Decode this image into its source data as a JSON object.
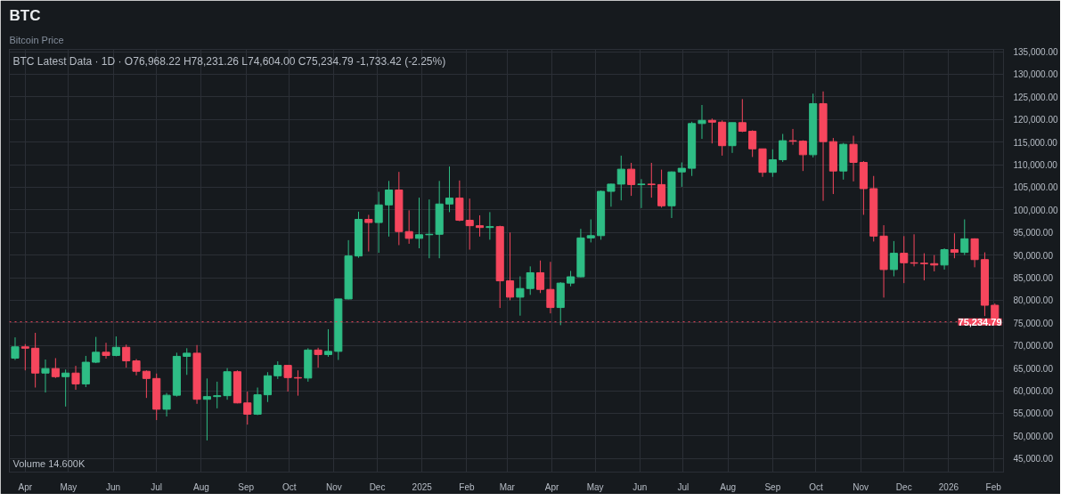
{
  "chart_data": {
    "type": "candlestick",
    "title": "BTC",
    "subtitle": "Bitcoin Price",
    "annotations": [
      "BTC Latest Data · 1D · O76,968.22 H78,231.26 L74,604.00 C75,234.79 -1,733.42 (-2.25%)",
      "Volume 14.600K"
    ],
    "x": [
      "2024-03-25",
      "2024-04-01",
      "2024-04-08",
      "2024-04-15",
      "2024-04-22",
      "2024-04-29",
      "2024-05-06",
      "2024-05-13",
      "2024-05-20",
      "2024-05-27",
      "2024-06-03",
      "2024-06-10",
      "2024-06-17",
      "2024-06-24",
      "2024-07-01",
      "2024-07-08",
      "2024-07-15",
      "2024-07-22",
      "2024-07-29",
      "2024-08-05",
      "2024-08-12",
      "2024-08-19",
      "2024-08-26",
      "2024-09-02",
      "2024-09-09",
      "2024-09-16",
      "2024-09-23",
      "2024-09-30",
      "2024-10-07",
      "2024-10-14",
      "2024-10-21",
      "2024-10-28",
      "2024-11-04",
      "2024-11-11",
      "2024-11-18",
      "2024-11-25",
      "2024-12-02",
      "2024-12-09",
      "2024-12-16",
      "2024-12-23",
      "2024-12-30",
      "2025-01-06",
      "2025-01-13",
      "2025-01-20",
      "2025-01-27",
      "2025-02-03",
      "2025-02-10",
      "2025-02-17",
      "2025-02-24",
      "2025-03-03",
      "2025-03-10",
      "2025-03-17",
      "2025-03-24",
      "2025-03-31",
      "2025-04-07",
      "2025-04-14",
      "2025-04-21",
      "2025-04-28",
      "2025-05-05",
      "2025-05-12",
      "2025-05-19",
      "2025-05-26",
      "2025-06-02",
      "2025-06-09",
      "2025-06-16",
      "2025-06-23",
      "2025-06-30",
      "2025-07-07",
      "2025-07-14",
      "2025-07-21",
      "2025-07-28",
      "2025-08-04",
      "2025-08-11",
      "2025-08-18",
      "2025-08-25",
      "2025-09-01",
      "2025-09-08",
      "2025-09-15",
      "2025-09-22",
      "2025-09-29",
      "2025-10-06",
      "2025-10-13",
      "2025-10-20",
      "2025-10-27",
      "2025-11-03",
      "2025-11-10",
      "2025-11-17",
      "2025-11-24",
      "2025-12-01",
      "2025-12-08",
      "2025-12-15",
      "2025-12-22",
      "2025-12-29",
      "2026-01-05",
      "2026-01-12",
      "2026-01-19",
      "2026-01-26",
      "2026-02-02"
    ],
    "ohlc": [
      [
        67200,
        71800,
        66800,
        69700
      ],
      [
        69700,
        70300,
        64500,
        69400
      ],
      [
        69400,
        72800,
        60700,
        63900
      ],
      [
        63900,
        66900,
        59600,
        64900
      ],
      [
        64900,
        67200,
        62800,
        63100
      ],
      [
        63100,
        64700,
        56500,
        63900
      ],
      [
        63900,
        65500,
        60200,
        61500
      ],
      [
        61500,
        67700,
        60800,
        66300
      ],
      [
        66300,
        71900,
        66100,
        68500
      ],
      [
        68500,
        70600,
        67100,
        67800
      ],
      [
        67800,
        72000,
        67600,
        69600
      ],
      [
        69600,
        70200,
        65100,
        66600
      ],
      [
        66600,
        67000,
        63400,
        64300
      ],
      [
        64300,
        64500,
        58400,
        62700
      ],
      [
        62700,
        63800,
        53500,
        55900
      ],
      [
        55900,
        59500,
        54300,
        59000
      ],
      [
        59000,
        68400,
        58700,
        67600
      ],
      [
        67600,
        69400,
        63500,
        68300
      ],
      [
        68300,
        70100,
        57100,
        58100
      ],
      [
        58100,
        62700,
        49000,
        58700
      ],
      [
        58700,
        62000,
        56100,
        58900
      ],
      [
        58900,
        65000,
        58000,
        64200
      ],
      [
        64200,
        64500,
        57200,
        57300
      ],
      [
        57300,
        59800,
        52500,
        54800
      ],
      [
        54800,
        60700,
        54600,
        59100
      ],
      [
        59100,
        64100,
        57500,
        63300
      ],
      [
        63300,
        66500,
        62600,
        65600
      ],
      [
        65600,
        65600,
        59800,
        62900
      ],
      [
        62900,
        64500,
        58900,
        62800
      ],
      [
        62800,
        69400,
        62000,
        69000
      ],
      [
        69000,
        69500,
        65100,
        68000
      ],
      [
        68000,
        73600,
        67500,
        68700
      ],
      [
        68700,
        80300,
        66800,
        80300
      ],
      [
        80300,
        93300,
        80200,
        89800
      ],
      [
        89800,
        99600,
        89400,
        97900
      ],
      [
        97900,
        98900,
        90800,
        97200
      ],
      [
        97200,
        104000,
        90500,
        101100
      ],
      [
        101100,
        106400,
        94100,
        104400
      ],
      [
        104400,
        108400,
        92200,
        95200
      ],
      [
        95200,
        99900,
        92500,
        93700
      ],
      [
        93700,
        102700,
        91500,
        94500
      ],
      [
        94500,
        102300,
        89300,
        94600
      ],
      [
        94600,
        106400,
        89300,
        101300
      ],
      [
        101300,
        109600,
        99500,
        102600
      ],
      [
        102600,
        106500,
        97500,
        97700
      ],
      [
        97700,
        102500,
        91200,
        96500
      ],
      [
        96500,
        98800,
        94100,
        96100
      ],
      [
        96100,
        99500,
        93400,
        96300
      ],
      [
        96300,
        96500,
        78300,
        84300
      ],
      [
        84300,
        95000,
        80000,
        80700
      ],
      [
        80700,
        85300,
        76600,
        82600
      ],
      [
        82600,
        87500,
        81200,
        86100
      ],
      [
        86100,
        88800,
        81600,
        82400
      ],
      [
        82400,
        88500,
        77100,
        78400
      ],
      [
        78400,
        84000,
        74500,
        83800
      ],
      [
        83800,
        86500,
        83100,
        85200
      ],
      [
        85200,
        95800,
        85100,
        93800
      ],
      [
        93800,
        97900,
        92800,
        94300
      ],
      [
        94300,
        104300,
        93400,
        104100
      ],
      [
        104100,
        105800,
        100700,
        105700
      ],
      [
        105700,
        112000,
        102100,
        109000
      ],
      [
        109000,
        110400,
        103100,
        105600
      ],
      [
        105600,
        106800,
        100400,
        105700
      ],
      [
        105700,
        110400,
        102700,
        105600
      ],
      [
        105600,
        108900,
        100500,
        100900
      ],
      [
        100900,
        108500,
        98200,
        108400
      ],
      [
        108400,
        110500,
        105100,
        109200
      ],
      [
        109200,
        119500,
        107500,
        119100
      ],
      [
        119100,
        123200,
        115700,
        119800
      ],
      [
        119800,
        120200,
        114700,
        119400
      ],
      [
        119400,
        119800,
        112000,
        114200
      ],
      [
        114200,
        119300,
        112600,
        119300
      ],
      [
        119300,
        124500,
        117200,
        117400
      ],
      [
        117400,
        117600,
        111700,
        113500
      ],
      [
        113500,
        113500,
        107300,
        108300
      ],
      [
        108300,
        113400,
        107300,
        111100
      ],
      [
        111100,
        116800,
        110600,
        115300
      ],
      [
        115300,
        117900,
        114400,
        115200
      ],
      [
        115200,
        115400,
        108600,
        112200
      ],
      [
        112200,
        125700,
        111600,
        123500
      ],
      [
        123500,
        126200,
        102000,
        115100
      ],
      [
        115100,
        115900,
        103500,
        108600
      ],
      [
        108600,
        114800,
        106700,
        114500
      ],
      [
        114500,
        116400,
        106300,
        110500
      ],
      [
        110500,
        110800,
        98900,
        104700
      ],
      [
        104700,
        107500,
        93000,
        94200
      ],
      [
        94200,
        96600,
        80600,
        86800
      ],
      [
        86800,
        93100,
        85300,
        90400
      ],
      [
        90400,
        94200,
        83800,
        88300
      ],
      [
        88300,
        94600,
        87500,
        88200
      ],
      [
        88200,
        90400,
        84400,
        88100
      ],
      [
        88100,
        90000,
        86400,
        87800
      ],
      [
        87800,
        91500,
        86800,
        91200
      ],
      [
        91200,
        94800,
        89300,
        90600
      ],
      [
        90600,
        97900,
        90000,
        93600
      ],
      [
        93600,
        93700,
        87300,
        89000
      ],
      [
        89000,
        90600,
        76500,
        78900
      ],
      [
        78900,
        79300,
        74604,
        75234.79
      ]
    ],
    "colors": [
      "#2ebd85",
      "#f6465d",
      "#f6465d",
      "#2ebd85",
      "#f6465d",
      "#2ebd85",
      "#f6465d",
      "#2ebd85",
      "#2ebd85",
      "#f6465d",
      "#2ebd85",
      "#f6465d",
      "#f6465d",
      "#f6465d",
      "#f6465d",
      "#2ebd85",
      "#2ebd85",
      "#2ebd85",
      "#f6465d",
      "#2ebd85",
      "#2ebd85",
      "#2ebd85",
      "#f6465d",
      "#f6465d",
      "#2ebd85",
      "#2ebd85",
      "#2ebd85",
      "#f6465d",
      "#f6465d",
      "#2ebd85",
      "#f6465d",
      "#2ebd85",
      "#2ebd85",
      "#2ebd85",
      "#2ebd85",
      "#f6465d",
      "#2ebd85",
      "#2ebd85",
      "#f6465d",
      "#f6465d",
      "#2ebd85",
      "#2ebd85",
      "#2ebd85",
      "#2ebd85",
      "#f6465d",
      "#f6465d",
      "#f6465d",
      "#2ebd85",
      "#f6465d",
      "#f6465d",
      "#2ebd85",
      "#2ebd85",
      "#f6465d",
      "#f6465d",
      "#2ebd85",
      "#2ebd85",
      "#2ebd85",
      "#2ebd85",
      "#2ebd85",
      "#2ebd85",
      "#2ebd85",
      "#f6465d",
      "#2ebd85",
      "#f6465d",
      "#f6465d",
      "#2ebd85",
      "#2ebd85",
      "#2ebd85",
      "#2ebd85",
      "#f6465d",
      "#f6465d",
      "#2ebd85",
      "#f6465d",
      "#f6465d",
      "#f6465d",
      "#2ebd85",
      "#2ebd85",
      "#f6465d",
      "#f6465d",
      "#2ebd85",
      "#f6465d",
      "#f6465d",
      "#2ebd85",
      "#f6465d",
      "#f6465d",
      "#f6465d",
      "#f6465d",
      "#2ebd85",
      "#f6465d",
      "#f6465d",
      "#f6465d",
      "#f6465d",
      "#2ebd85",
      "#f6465d",
      "#2ebd85",
      "#f6465d",
      "#f6465d",
      "#f6465d"
    ],
    "xlim": [
      "2024-03-21",
      "2026-02-08"
    ],
    "xticks": [
      {
        "value": "2024-04-01",
        "label": "Apr"
      },
      {
        "value": "2024-05-01",
        "label": "May"
      },
      {
        "value": "2024-06-01",
        "label": "Jun"
      },
      {
        "value": "2024-07-01",
        "label": "Jul"
      },
      {
        "value": "2024-08-01",
        "label": "Aug"
      },
      {
        "value": "2024-09-01",
        "label": "Sep"
      },
      {
        "value": "2024-10-01",
        "label": "Oct"
      },
      {
        "value": "2024-11-01",
        "label": "Nov"
      },
      {
        "value": "2024-12-01",
        "label": "Dec"
      },
      {
        "value": "2025-01-01",
        "label": "2025"
      },
      {
        "value": "2025-02-01",
        "label": "Feb"
      },
      {
        "value": "2025-03-01",
        "label": "Mar"
      },
      {
        "value": "2025-04-01",
        "label": "Apr"
      },
      {
        "value": "2025-05-01",
        "label": "May"
      },
      {
        "value": "2025-06-01",
        "label": "Jun"
      },
      {
        "value": "2025-07-01",
        "label": "Jul"
      },
      {
        "value": "2025-08-01",
        "label": "Aug"
      },
      {
        "value": "2025-09-01",
        "label": "Sep"
      },
      {
        "value": "2025-10-01",
        "label": "Oct"
      },
      {
        "value": "2025-11-01",
        "label": "Nov"
      },
      {
        "value": "2025-12-01",
        "label": "Dec"
      },
      {
        "value": "2026-01-01",
        "label": "2026"
      },
      {
        "value": "2026-02-01",
        "label": "Feb"
      }
    ],
    "ylim": [
      42000,
      135500
    ],
    "yticks": [
      {
        "value": 45000,
        "label": "45,000.00"
      },
      {
        "value": 50000,
        "label": "50,000.00"
      },
      {
        "value": 55000,
        "label": "55,000.00"
      },
      {
        "value": 60000,
        "label": "60,000.00"
      },
      {
        "value": 65000,
        "label": "65,000.00"
      },
      {
        "value": 70000,
        "label": "70,000.00"
      },
      {
        "value": 75000,
        "label": "75,000.00"
      },
      {
        "value": 80000,
        "label": "80,000.00"
      },
      {
        "value": 85000,
        "label": "85,000.00"
      },
      {
        "value": 90000,
        "label": "90,000.00"
      },
      {
        "value": 95000,
        "label": "95,000.00"
      },
      {
        "value": 100000,
        "label": "100,000.00"
      },
      {
        "value": 105000,
        "label": "105,000.00"
      },
      {
        "value": 110000,
        "label": "110,000.00"
      },
      {
        "value": 115000,
        "label": "115,000.00"
      },
      {
        "value": 120000,
        "label": "120,000.00"
      },
      {
        "value": 125000,
        "label": "125,000.00"
      },
      {
        "value": 130000,
        "label": "130,000.00"
      },
      {
        "value": 135000,
        "label": "135,000.00"
      }
    ],
    "ref_lines": [
      {
        "axis": "y",
        "value": 75234.79,
        "label": "75,234.79",
        "color": "#f6465d",
        "line_style": "dotted"
      }
    ],
    "grid": true
  }
}
